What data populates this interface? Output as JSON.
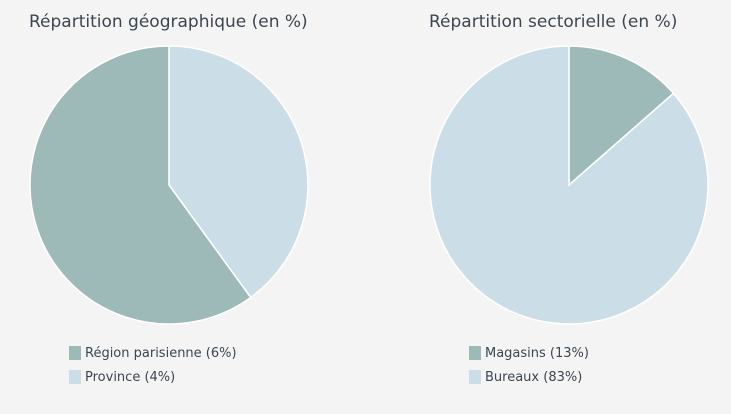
{
  "chart_data": [
    {
      "type": "pie",
      "title": "Répartition géographique (en %)",
      "slices": [
        {
          "label": "Région parisienne (6%)",
          "value": 6,
          "color": "#9dbab9"
        },
        {
          "label": "Province (4%)",
          "value": 4,
          "color": "#cbdde6"
        }
      ]
    },
    {
      "type": "pie",
      "title": "Répartition sectorielle (en %)",
      "slices": [
        {
          "label": "Magasins (13%)",
          "value": 13,
          "color": "#9dbab9"
        },
        {
          "label": "Bureaux (83%)",
          "value": 83,
          "color": "#cbdde6"
        }
      ]
    }
  ]
}
